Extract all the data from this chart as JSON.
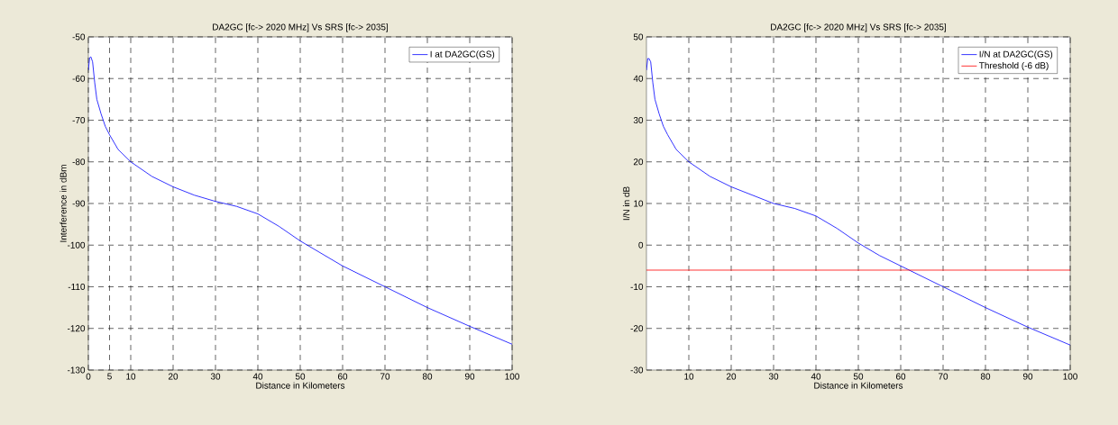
{
  "chart_data": [
    {
      "type": "line",
      "title": "DA2GC [fc-> 2020 MHz] Vs SRS [fc-> 2035]",
      "xlabel": "Distance in Kilometers",
      "ylabel": "Interference in dBm",
      "xlim": [
        0,
        100
      ],
      "ylim": [
        -130,
        -50
      ],
      "xticks": [
        0,
        5,
        10,
        20,
        30,
        40,
        50,
        60,
        70,
        80,
        90,
        100
      ],
      "yticks": [
        -130,
        -120,
        -110,
        -100,
        -90,
        -80,
        -70,
        -60,
        -50
      ],
      "grid": true,
      "legend": "top right",
      "series": [
        {
          "name": "I at DA2GC(GS)",
          "color": "#0000ff",
          "x": [
            0,
            0.3,
            0.6,
            1,
            1.5,
            2,
            3,
            4,
            5,
            7,
            10,
            15,
            20,
            25,
            30,
            35,
            40,
            45,
            50,
            55,
            60,
            70,
            80,
            90,
            100
          ],
          "values": [
            -58,
            -55,
            -54.8,
            -56,
            -61,
            -65,
            -68.5,
            -71.5,
            -73.5,
            -77,
            -80,
            -83.5,
            -86,
            -88,
            -89.5,
            -90.7,
            -92.5,
            -95.5,
            -99,
            -102,
            -105,
            -110,
            -115,
            -119.5,
            -123.8
          ]
        }
      ]
    },
    {
      "type": "line",
      "title": "DA2GC [fc-> 2020 MHz] Vs SRS [fc-> 2035]",
      "xlabel": "Distance in Kilometers",
      "ylabel": "I/N in dB",
      "xlim": [
        0,
        100
      ],
      "ylim": [
        -30,
        50
      ],
      "xticks": [
        10,
        20,
        30,
        40,
        50,
        60,
        70,
        80,
        90,
        100
      ],
      "yticks": [
        -30,
        -20,
        -10,
        0,
        10,
        20,
        30,
        40,
        50
      ],
      "grid": true,
      "legend": "top right",
      "series": [
        {
          "name": "I/N at DA2GC(GS)",
          "color": "#0000ff",
          "x": [
            0,
            0.3,
            0.6,
            1,
            1.5,
            2,
            3,
            4,
            5,
            7,
            10,
            15,
            20,
            25,
            30,
            35,
            40,
            45,
            50,
            55,
            60,
            70,
            80,
            90,
            100
          ],
          "values": [
            42,
            44.8,
            44.8,
            44,
            39,
            35,
            31.5,
            28.5,
            26.5,
            23,
            20,
            16.5,
            14,
            12,
            10,
            8.8,
            7,
            4,
            0.5,
            -2.5,
            -5,
            -10,
            -15,
            -19.7,
            -24
          ]
        },
        {
          "name": "Threshold (-6 dB)",
          "color": "#ff0000",
          "x": [
            0,
            100
          ],
          "values": [
            -6,
            -6
          ]
        }
      ]
    }
  ]
}
